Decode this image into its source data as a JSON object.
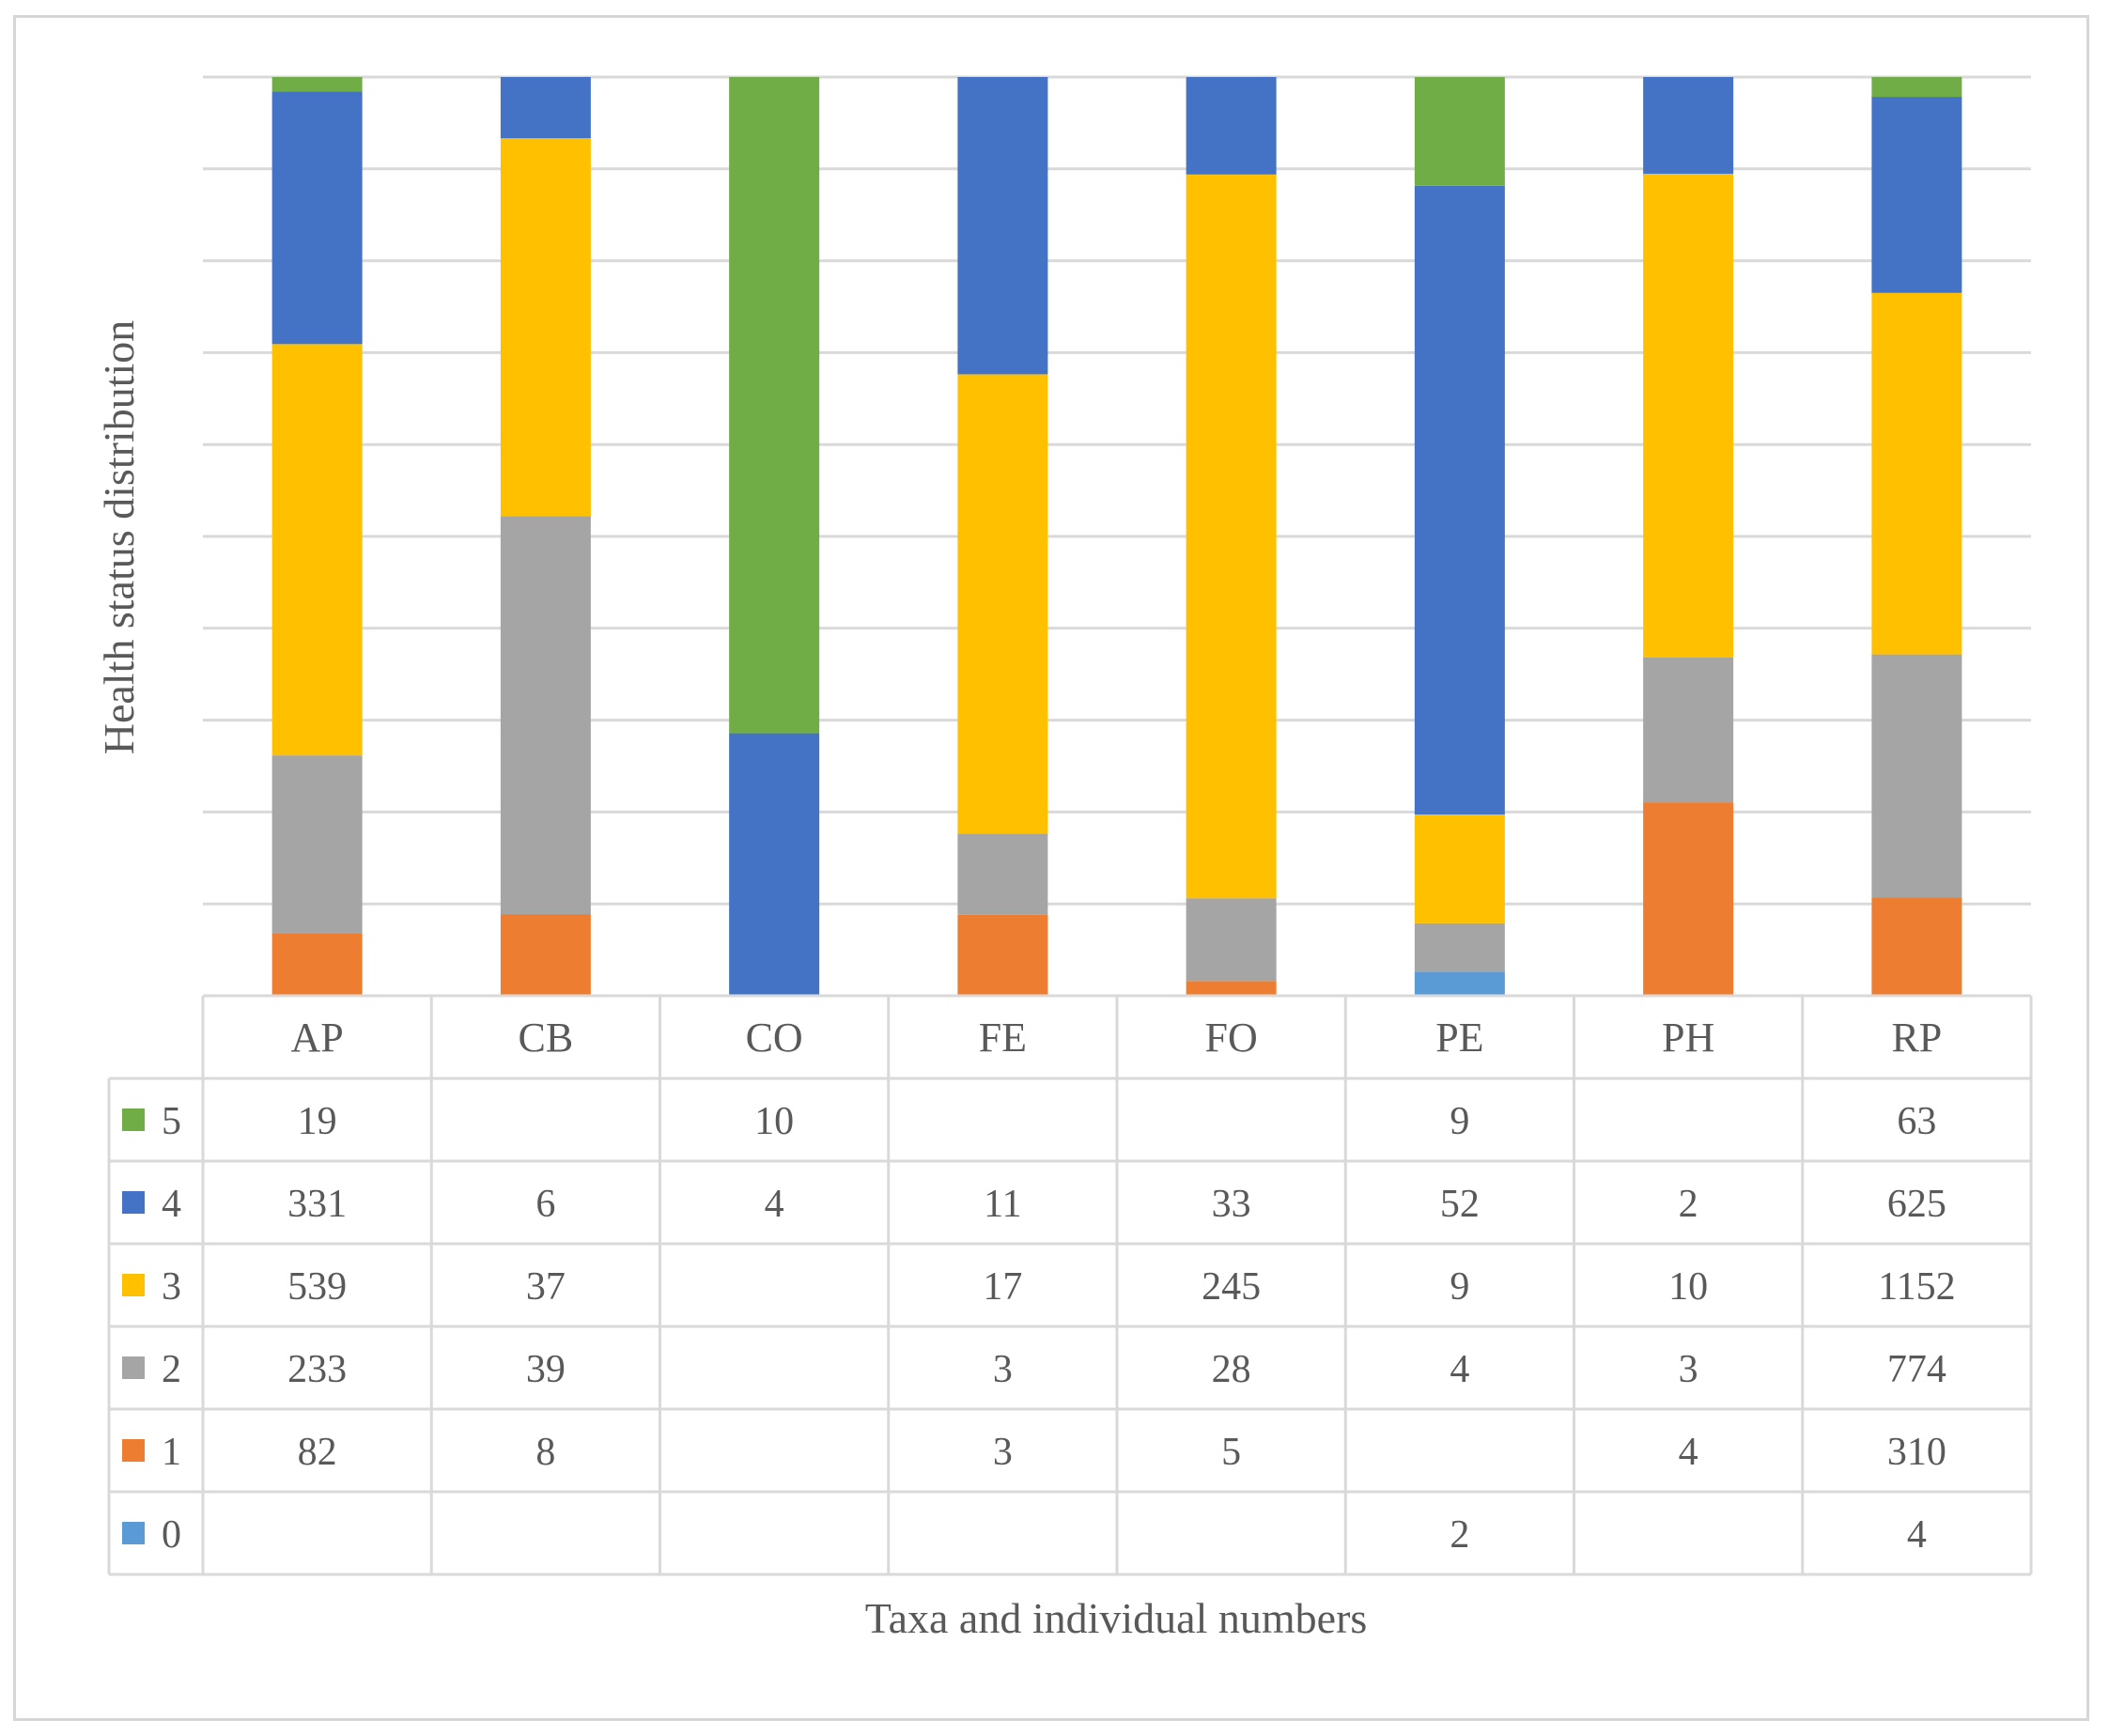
{
  "chart_data": {
    "type": "bar",
    "stacked": "percent",
    "title": "",
    "xlabel": "Taxa and individual numbers",
    "ylabel": "Health status distribution",
    "categories": [
      "AP",
      "CB",
      "CO",
      "FE",
      "FO",
      "PE",
      "PH",
      "RP"
    ],
    "series": [
      {
        "name": "0",
        "color": "#5B9BD5",
        "values": [
          null,
          null,
          null,
          null,
          null,
          2,
          null,
          4
        ]
      },
      {
        "name": "1",
        "color": "#ED7D31",
        "values": [
          82,
          8,
          null,
          3,
          5,
          null,
          4,
          310
        ]
      },
      {
        "name": "2",
        "color": "#A5A5A5",
        "values": [
          233,
          39,
          null,
          3,
          28,
          4,
          3,
          774
        ]
      },
      {
        "name": "3",
        "color": "#FFC000",
        "values": [
          539,
          37,
          null,
          17,
          245,
          9,
          10,
          1152
        ]
      },
      {
        "name": "4",
        "color": "#4472C4",
        "values": [
          331,
          6,
          4,
          11,
          33,
          52,
          2,
          625
        ]
      },
      {
        "name": "5",
        "color": "#70AD47",
        "values": [
          19,
          null,
          10,
          null,
          null,
          9,
          null,
          63
        ]
      }
    ],
    "table_row_order": [
      "5",
      "4",
      "3",
      "2",
      "1",
      "0"
    ],
    "grid": true,
    "gridline_count": 10,
    "legend": "data-table"
  }
}
